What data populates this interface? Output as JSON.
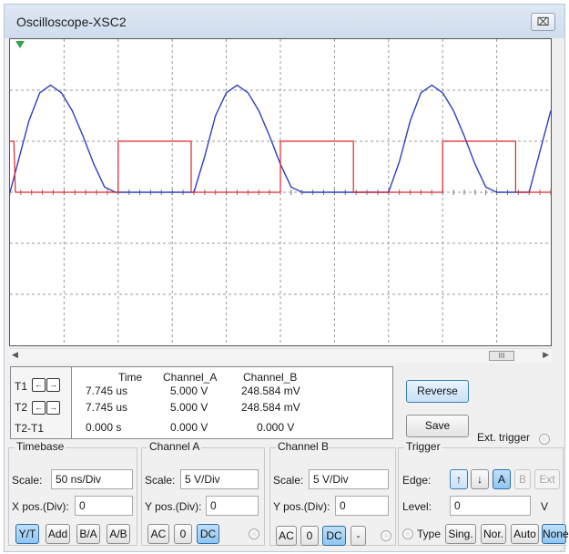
{
  "window": {
    "title": "Oscilloscope-XSC2",
    "close_label": "⌧"
  },
  "colors": {
    "channel_a": "#2e3fc0",
    "channel_b": "#e0252a",
    "accent": "#3c7fb1"
  },
  "screen": {
    "grid": true,
    "grid_divisions": {
      "x": 10,
      "y": 6
    },
    "trigger_marker_color": "#33a34d"
  },
  "chart_data": {
    "type": "line",
    "xlabel": "",
    "ylabel": "",
    "xlim": [
      0,
      10
    ],
    "ylim": [
      -3,
      3
    ],
    "grid": true,
    "series": [
      {
        "color": "#2e3fc0",
        "x": [
          0.0,
          0.15,
          0.35,
          0.55,
          0.75,
          0.95,
          1.15,
          1.35,
          1.55,
          1.75,
          1.95,
          2.15,
          2.3,
          2.45,
          2.6,
          2.75,
          2.9,
          3.05,
          3.2,
          3.4,
          3.6,
          3.8,
          4.0,
          4.2,
          4.4,
          4.6,
          4.8,
          5.0,
          5.2,
          5.4,
          5.6,
          5.8,
          6.0,
          6.2,
          6.4,
          6.6,
          6.8,
          7.0,
          7.2,
          7.4,
          7.6,
          7.8,
          8.0,
          8.2,
          8.4,
          8.6,
          8.8,
          9.0,
          9.2,
          9.4,
          9.6,
          9.8,
          10.0
        ],
        "y": [
          0.0,
          0.6,
          1.4,
          1.95,
          2.1,
          1.95,
          1.6,
          1.1,
          0.55,
          0.1,
          0.0,
          0.0,
          0.0,
          0.0,
          0.0,
          0.0,
          0.0,
          0.0,
          0.0,
          0.0,
          0.7,
          1.5,
          1.95,
          2.1,
          1.95,
          1.6,
          1.1,
          0.55,
          0.1,
          0.0,
          0.0,
          0.0,
          0.0,
          0.0,
          0.0,
          0.0,
          0.0,
          0.0,
          0.6,
          1.4,
          1.95,
          2.1,
          1.95,
          1.6,
          1.1,
          0.55,
          0.1,
          0.0,
          0.0,
          0.0,
          0.0,
          0.8,
          1.6
        ]
      },
      {
        "color": "#e0252a",
        "x": [
          0.0,
          0.07,
          0.1,
          2.0,
          2.0,
          3.35,
          3.35,
          5.0,
          5.0,
          6.35,
          6.35,
          8.0,
          8.0,
          9.35,
          9.35,
          10.0
        ],
        "y": [
          1.0,
          1.0,
          0.0,
          0.0,
          1.0,
          1.0,
          0.0,
          0.0,
          1.0,
          1.0,
          0.0,
          0.0,
          1.0,
          1.0,
          0.0,
          0.0
        ]
      }
    ]
  },
  "cursors": {
    "t1_label": "T1",
    "t2_label": "T2",
    "t2t1_label": "T2-T1",
    "left_arrow": "←",
    "right_arrow": "→",
    "headers": {
      "time": "Time",
      "channel_a": "Channel_A",
      "channel_b": "Channel_B"
    },
    "rows": [
      {
        "time": "7.745 us",
        "channel_a": "5.000 V",
        "channel_b": "248.584 mV"
      },
      {
        "time": "7.745 us",
        "channel_a": "5.000 V",
        "channel_b": "248.584 mV"
      },
      {
        "time": "0.000 s",
        "channel_a": "0.000 V",
        "channel_b": "0.000 V"
      }
    ]
  },
  "buttons": {
    "reverse": "Reverse",
    "save": "Save",
    "ext_trigger": "Ext. trigger"
  },
  "scrollbar": {
    "left": "◀",
    "right": "▶",
    "thumb": "III"
  },
  "timebase": {
    "title": "Timebase",
    "scale_label": "Scale:",
    "scale_value": "50 ns/Div",
    "xpos_label": "X pos.(Div):",
    "xpos_value": "0",
    "modes": [
      "Y/T",
      "Add",
      "B/A",
      "A/B"
    ]
  },
  "channel_a": {
    "title": "Channel A",
    "scale_label": "Scale:",
    "scale_value": "5  V/Div",
    "ypos_label": "Y pos.(Div):",
    "ypos_value": "0",
    "coupling": [
      "AC",
      "0",
      "DC"
    ]
  },
  "channel_b": {
    "title": "Channel B",
    "scale_label": "Scale:",
    "scale_value": "5  V/Div",
    "ypos_label": "Y pos.(Div):",
    "ypos_value": "0",
    "coupling": [
      "AC",
      "0",
      "DC",
      "-"
    ]
  },
  "trigger": {
    "title": "Trigger",
    "edge_label": "Edge:",
    "rising": "↑",
    "falling": "↓",
    "sources": [
      "A",
      "B",
      "Ext"
    ],
    "level_label": "Level:",
    "level_value": "0",
    "level_unit": "V",
    "type_label": "Type",
    "types": [
      "Sing.",
      "Nor.",
      "Auto",
      "None"
    ]
  }
}
